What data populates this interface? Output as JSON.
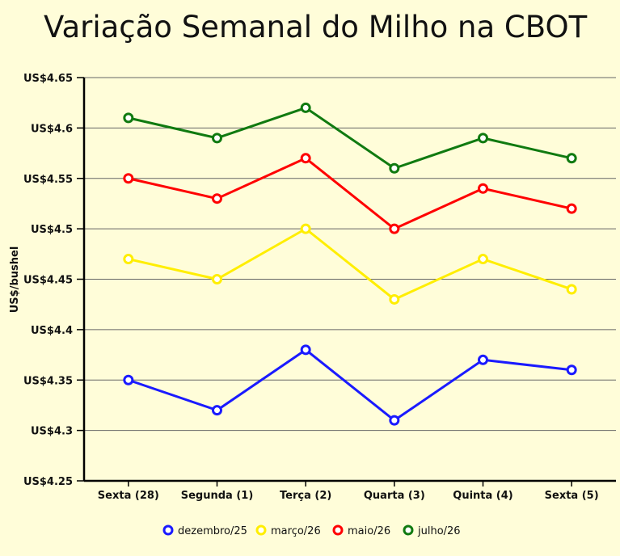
{
  "chart_data": {
    "type": "line",
    "title": "Variação Semanal do Milho na CBOT",
    "xlabel": "",
    "ylabel": "US$/bushel",
    "ylim": [
      4.25,
      4.65
    ],
    "yticks": [
      4.25,
      4.3,
      4.35,
      4.4,
      4.45,
      4.5,
      4.55,
      4.6,
      4.65
    ],
    "ytick_prefix": "US$",
    "grid": "horizontal",
    "legend_position": "bottom",
    "categories": [
      "Sexta (28)",
      "Segunda (1)",
      "Terça (2)",
      "Quarta (3)",
      "Quinta (4)",
      "Sexta (5)"
    ],
    "series": [
      {
        "name": "dezembro/25",
        "color": "#1a1aff",
        "values": [
          4.35,
          4.32,
          4.38,
          4.31,
          4.37,
          4.36
        ]
      },
      {
        "name": "março/26",
        "color": "#ffee00",
        "values": [
          4.47,
          4.45,
          4.5,
          4.43,
          4.47,
          4.44
        ]
      },
      {
        "name": "maio/26",
        "color": "#ff0000",
        "values": [
          4.55,
          4.53,
          4.57,
          4.5,
          4.54,
          4.52
        ]
      },
      {
        "name": "julho/26",
        "color": "#107a10",
        "values": [
          4.61,
          4.59,
          4.62,
          4.56,
          4.59,
          4.57
        ]
      }
    ]
  }
}
